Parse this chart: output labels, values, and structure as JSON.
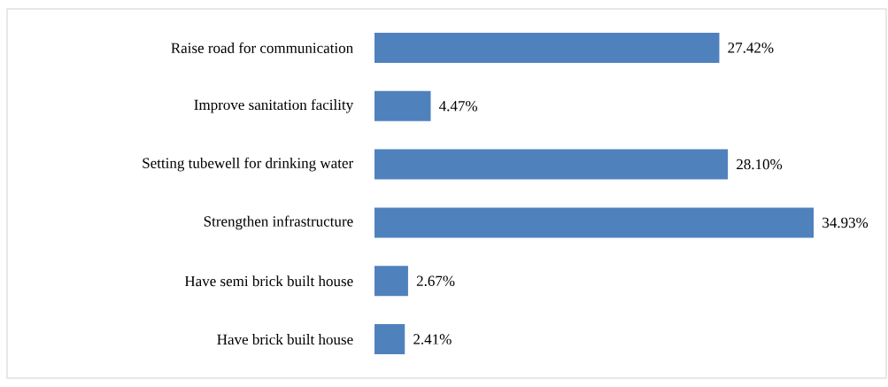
{
  "chart_data": {
    "type": "bar",
    "orientation": "horizontal",
    "categories": [
      "Raise road for communication",
      "Improve sanitation facility",
      "Setting tubewell  for drinking water",
      "Strengthen infrastructure",
      "Have semi brick built house",
      "Have brick built house"
    ],
    "values": [
      27.42,
      4.47,
      28.1,
      34.93,
      2.67,
      2.41
    ],
    "value_labels": [
      "27.42%",
      "4.47%",
      "28.10%",
      "34.93%",
      "2.67%",
      "2.41%"
    ],
    "color": "#4f81bd"
  }
}
